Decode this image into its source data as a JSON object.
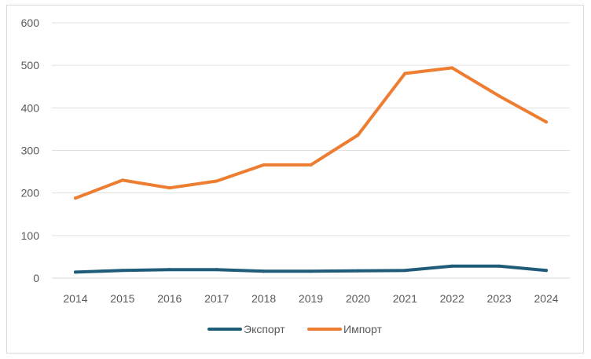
{
  "chart_data": {
    "type": "line",
    "title": "",
    "xlabel": "",
    "ylabel": "",
    "categories": [
      "2014",
      "2015",
      "2016",
      "2017",
      "2018",
      "2019",
      "2020",
      "2021",
      "2022",
      "2023",
      "2024"
    ],
    "ylim": [
      0,
      600
    ],
    "yticks": [
      0,
      100,
      200,
      300,
      400,
      500,
      600
    ],
    "grid": true,
    "legend_position": "bottom",
    "series": [
      {
        "name": "Экспорт",
        "color": "#1f5c7a",
        "values": [
          14,
          18,
          20,
          20,
          16,
          16,
          17,
          18,
          28,
          28,
          18
        ]
      },
      {
        "name": "Импорт",
        "color": "#ed7d31",
        "values": [
          188,
          230,
          212,
          228,
          266,
          266,
          336,
          481,
          494,
          428,
          367
        ]
      }
    ]
  }
}
